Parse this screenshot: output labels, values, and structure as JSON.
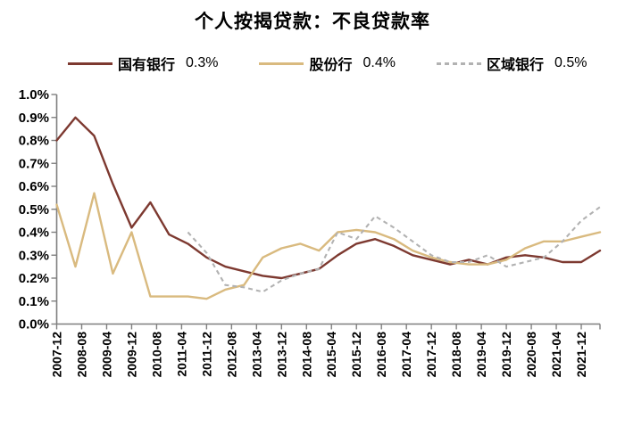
{
  "title": "个人按揭贷款：不良贷款率",
  "legend": [
    {
      "label": "国有银行",
      "value": "0.3%",
      "color": "#7D3930",
      "dashed": false
    },
    {
      "label": "股份行",
      "value": "0.4%",
      "color": "#D9BA7F",
      "dashed": false
    },
    {
      "label": "区域银行",
      "value": "0.5%",
      "color": "#B2B2B2",
      "dashed": true
    }
  ],
  "chart_data": {
    "type": "line",
    "title": "个人按揭贷款：不良贷款率",
    "x": [
      "2007-12",
      "2008-06",
      "2008-12",
      "2009-06",
      "2009-12",
      "2010-06",
      "2010-12",
      "2011-06",
      "2011-12",
      "2012-06",
      "2012-12",
      "2013-06",
      "2013-12",
      "2014-06",
      "2014-12",
      "2015-06",
      "2015-12",
      "2016-06",
      "2016-12",
      "2017-06",
      "2017-12",
      "2018-06",
      "2018-12",
      "2019-06",
      "2019-12",
      "2020-06",
      "2020-12",
      "2021-06",
      "2021-12",
      "2022-06"
    ],
    "x_step_months": 6,
    "x_total_months": 174,
    "series": [
      {
        "name": "国有银行",
        "color": "#7D3930",
        "dashed": false,
        "values": [
          0.8,
          0.9,
          0.82,
          0.61,
          0.42,
          0.53,
          0.39,
          0.35,
          0.29,
          0.25,
          0.23,
          0.21,
          0.2,
          0.22,
          0.24,
          0.3,
          0.35,
          0.37,
          0.34,
          0.3,
          0.28,
          0.26,
          0.28,
          0.26,
          0.29,
          0.3,
          0.29,
          0.27,
          0.27,
          0.32
        ]
      },
      {
        "name": "股份行",
        "color": "#D9BA7F",
        "dashed": false,
        "values": [
          0.52,
          0.25,
          0.57,
          0.22,
          0.4,
          0.12,
          0.12,
          0.12,
          0.11,
          0.15,
          0.17,
          0.29,
          0.33,
          0.35,
          0.32,
          0.4,
          0.41,
          0.4,
          0.37,
          0.32,
          0.29,
          0.27,
          0.26,
          0.26,
          0.28,
          0.33,
          0.36,
          0.36,
          0.38,
          0.4
        ]
      },
      {
        "name": "区域银行",
        "color": "#B2B2B2",
        "dashed": true,
        "values": [
          null,
          null,
          null,
          null,
          null,
          null,
          null,
          0.4,
          0.31,
          0.17,
          0.16,
          0.14,
          0.19,
          0.22,
          0.24,
          0.4,
          0.37,
          0.47,
          0.42,
          0.36,
          0.3,
          0.27,
          0.27,
          0.3,
          0.25,
          0.27,
          0.29,
          0.36,
          0.45,
          0.51
        ]
      }
    ],
    "ylim": [
      0.0,
      1.0
    ],
    "ytick_labels": [
      "0.0%",
      "0.1%",
      "0.2%",
      "0.3%",
      "0.4%",
      "0.5%",
      "0.6%",
      "0.7%",
      "0.8%",
      "0.9%",
      "1.0%"
    ],
    "xtick_labels": [
      "2007-12",
      "2008-08",
      "2009-04",
      "2009-12",
      "2010-08",
      "2011-04",
      "2011-12",
      "2012-08",
      "2013-04",
      "2013-12",
      "2014-08",
      "2015-04",
      "2015-12",
      "2016-08",
      "2017-04",
      "2017-12",
      "2018-08",
      "2019-04",
      "2019-12",
      "2020-08",
      "2021-04",
      "2021-12"
    ],
    "xtick_interval_months": 8,
    "grid": false,
    "legend_position": "top"
  }
}
